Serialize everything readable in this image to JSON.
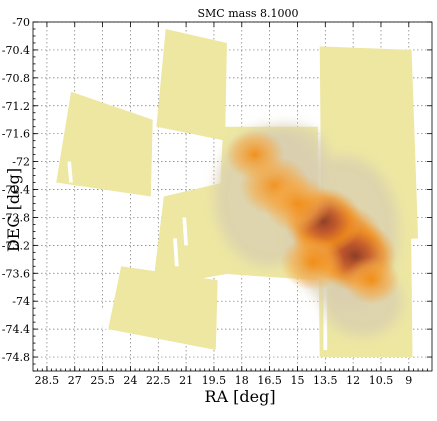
{
  "chart_data": {
    "type": "heatmap",
    "title": "SMC mass  8.1000",
    "xlabel": "RA [deg]",
    "ylabel": "DEC [deg]",
    "xlim": [
      29.25,
      7.75
    ],
    "ylim": [
      -75.0,
      -70.0
    ],
    "x_inverted": true,
    "grid": true,
    "x_ticks": [
      28.5,
      27,
      25.5,
      24,
      22.5,
      21,
      19.5,
      18,
      16.5,
      15,
      13.5,
      12,
      10.5,
      9
    ],
    "x_tick_labels": [
      "28.5",
      "27",
      "25.5",
      "24",
      "22.5",
      "21",
      "19.5",
      "18",
      "16.5",
      "15",
      "13.5",
      "12",
      "10.5",
      "9"
    ],
    "y_ticks": [
      -70,
      -70.4,
      -70.8,
      -71.2,
      -71.6,
      -72,
      -72.4,
      -72.8,
      -73.2,
      -73.6,
      -74,
      -74.4,
      -74.8
    ],
    "y_tick_labels": [
      "-70",
      "-70.4",
      "-70.8",
      "-71.2",
      "-71.6",
      "-72",
      "-72.4",
      "-72.8",
      "-73.2",
      "-73.6",
      "-74",
      "-74.4",
      "-74.8"
    ],
    "colors": {
      "background_coverage": "#ede7a2",
      "low": "#d8cdb0",
      "mid": "#f4a23a",
      "high": "#f28a10",
      "peak": "#9a4a2a"
    },
    "density_peaks": [
      {
        "ra": 12.8,
        "dec": -73.15,
        "value": 1.0
      },
      {
        "ra": 11.9,
        "dec": -73.35,
        "value": 0.85
      },
      {
        "ra": 13.6,
        "dec": -72.85,
        "value": 0.75
      },
      {
        "ra": 16.2,
        "dec": -72.35,
        "value": 0.6
      },
      {
        "ra": 15.0,
        "dec": -72.6,
        "value": 0.55
      },
      {
        "ra": 17.3,
        "dec": -71.9,
        "value": 0.4
      },
      {
        "ra": 14.2,
        "dec": -73.45,
        "value": 0.5
      },
      {
        "ra": 11.0,
        "dec": -73.7,
        "value": 0.35
      }
    ]
  }
}
